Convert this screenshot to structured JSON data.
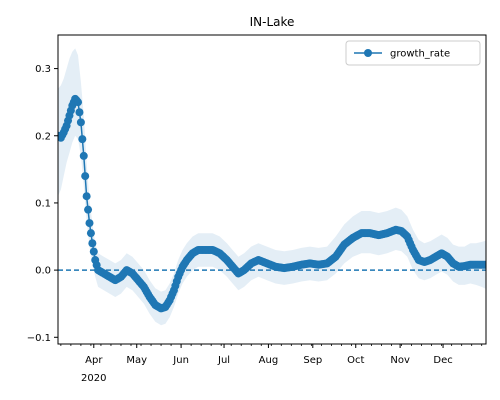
{
  "chart_data": {
    "type": "line",
    "title": "IN-Lake",
    "xlabel": "",
    "ylabel": "",
    "x_range": [
      "2020-03-07",
      "2020-12-31"
    ],
    "ylim": [
      -0.11,
      0.35
    ],
    "grid": false,
    "legend_position": "top-right",
    "x_tick_labels": [
      "Apr",
      "May",
      "Jun",
      "Jul",
      "Aug",
      "Sep",
      "Oct",
      "Nov",
      "Dec"
    ],
    "x_tick_dates": [
      "2020-04-01",
      "2020-05-01",
      "2020-06-01",
      "2020-07-01",
      "2020-08-01",
      "2020-09-01",
      "2020-10-01",
      "2020-11-01",
      "2020-12-01"
    ],
    "x_year_label": "2020",
    "y_ticks": [
      -0.1,
      0.0,
      0.1,
      0.2,
      0.3
    ],
    "y_tick_labels": [
      "−0.1",
      "0.0",
      "0.1",
      "0.2",
      "0.3"
    ],
    "reference_line": {
      "y": 0.0,
      "style": "dashed"
    },
    "series": [
      {
        "name": "growth_rate",
        "color": "#1f77b4",
        "band_color": "#1f77b4",
        "points": [
          {
            "x": "2020-03-07",
            "y": 0.2,
            "lo": 0.11,
            "hi": 0.27
          },
          {
            "x": "2020-03-09",
            "y": 0.197,
            "lo": 0.12,
            "hi": 0.275
          },
          {
            "x": "2020-03-11",
            "y": 0.205,
            "lo": 0.14,
            "hi": 0.285
          },
          {
            "x": "2020-03-13",
            "y": 0.215,
            "lo": 0.16,
            "hi": 0.3
          },
          {
            "x": "2020-03-15",
            "y": 0.23,
            "lo": 0.175,
            "hi": 0.315
          },
          {
            "x": "2020-03-17",
            "y": 0.245,
            "lo": 0.19,
            "hi": 0.325
          },
          {
            "x": "2020-03-19",
            "y": 0.255,
            "lo": 0.2,
            "hi": 0.33
          },
          {
            "x": "2020-03-21",
            "y": 0.25,
            "lo": 0.195,
            "hi": 0.32
          },
          {
            "x": "2020-03-23",
            "y": 0.22,
            "lo": 0.17,
            "hi": 0.28
          },
          {
            "x": "2020-03-25",
            "y": 0.17,
            "lo": 0.125,
            "hi": 0.23
          },
          {
            "x": "2020-03-27",
            "y": 0.11,
            "lo": 0.075,
            "hi": 0.16
          },
          {
            "x": "2020-03-29",
            "y": 0.07,
            "lo": 0.035,
            "hi": 0.105
          },
          {
            "x": "2020-03-31",
            "y": 0.04,
            "lo": 0.01,
            "hi": 0.07
          },
          {
            "x": "2020-04-02",
            "y": 0.015,
            "lo": -0.01,
            "hi": 0.04
          },
          {
            "x": "2020-04-04",
            "y": 0.0,
            "lo": -0.025,
            "hi": 0.025
          },
          {
            "x": "2020-04-08",
            "y": -0.005,
            "lo": -0.03,
            "hi": 0.02
          },
          {
            "x": "2020-04-12",
            "y": -0.01,
            "lo": -0.035,
            "hi": 0.015
          },
          {
            "x": "2020-04-16",
            "y": -0.015,
            "lo": -0.04,
            "hi": 0.01
          },
          {
            "x": "2020-04-20",
            "y": -0.01,
            "lo": -0.035,
            "hi": 0.015
          },
          {
            "x": "2020-04-24",
            "y": 0.0,
            "lo": -0.025,
            "hi": 0.025
          },
          {
            "x": "2020-04-28",
            "y": -0.005,
            "lo": -0.03,
            "hi": 0.02
          },
          {
            "x": "2020-05-02",
            "y": -0.015,
            "lo": -0.04,
            "hi": 0.01
          },
          {
            "x": "2020-05-06",
            "y": -0.025,
            "lo": -0.05,
            "hi": 0.0
          },
          {
            "x": "2020-05-10",
            "y": -0.04,
            "lo": -0.065,
            "hi": -0.015
          },
          {
            "x": "2020-05-14",
            "y": -0.052,
            "lo": -0.077,
            "hi": -0.027
          },
          {
            "x": "2020-05-18",
            "y": -0.057,
            "lo": -0.082,
            "hi": -0.032
          },
          {
            "x": "2020-05-21",
            "y": -0.055,
            "lo": -0.08,
            "hi": -0.03
          },
          {
            "x": "2020-05-24",
            "y": -0.045,
            "lo": -0.07,
            "hi": -0.02
          },
          {
            "x": "2020-05-27",
            "y": -0.03,
            "lo": -0.055,
            "hi": -0.005
          },
          {
            "x": "2020-05-30",
            "y": -0.01,
            "lo": -0.035,
            "hi": 0.015
          },
          {
            "x": "2020-06-02",
            "y": 0.005,
            "lo": -0.02,
            "hi": 0.03
          },
          {
            "x": "2020-06-05",
            "y": 0.015,
            "lo": -0.01,
            "hi": 0.04
          },
          {
            "x": "2020-06-09",
            "y": 0.025,
            "lo": 0.0,
            "hi": 0.05
          },
          {
            "x": "2020-06-13",
            "y": 0.03,
            "lo": 0.005,
            "hi": 0.055
          },
          {
            "x": "2020-06-18",
            "y": 0.03,
            "lo": 0.005,
            "hi": 0.055
          },
          {
            "x": "2020-06-23",
            "y": 0.03,
            "lo": 0.005,
            "hi": 0.055
          },
          {
            "x": "2020-06-28",
            "y": 0.025,
            "lo": 0.0,
            "hi": 0.05
          },
          {
            "x": "2020-07-03",
            "y": 0.015,
            "lo": -0.01,
            "hi": 0.04
          },
          {
            "x": "2020-07-07",
            "y": 0.005,
            "lo": -0.02,
            "hi": 0.03
          },
          {
            "x": "2020-07-11",
            "y": -0.005,
            "lo": -0.03,
            "hi": 0.02
          },
          {
            "x": "2020-07-15",
            "y": 0.0,
            "lo": -0.025,
            "hi": 0.025
          },
          {
            "x": "2020-07-20",
            "y": 0.01,
            "lo": -0.015,
            "hi": 0.035
          },
          {
            "x": "2020-07-25",
            "y": 0.015,
            "lo": -0.01,
            "hi": 0.04
          },
          {
            "x": "2020-07-31",
            "y": 0.01,
            "lo": -0.015,
            "hi": 0.035
          },
          {
            "x": "2020-08-06",
            "y": 0.005,
            "lo": -0.02,
            "hi": 0.03
          },
          {
            "x": "2020-08-12",
            "y": 0.003,
            "lo": -0.022,
            "hi": 0.028
          },
          {
            "x": "2020-08-18",
            "y": 0.005,
            "lo": -0.02,
            "hi": 0.03
          },
          {
            "x": "2020-08-24",
            "y": 0.008,
            "lo": -0.017,
            "hi": 0.033
          },
          {
            "x": "2020-08-30",
            "y": 0.01,
            "lo": -0.015,
            "hi": 0.035
          },
          {
            "x": "2020-09-05",
            "y": 0.008,
            "lo": -0.017,
            "hi": 0.033
          },
          {
            "x": "2020-09-11",
            "y": 0.01,
            "lo": -0.015,
            "hi": 0.035
          },
          {
            "x": "2020-09-17",
            "y": 0.02,
            "lo": -0.005,
            "hi": 0.05
          },
          {
            "x": "2020-09-23",
            "y": 0.038,
            "lo": 0.01,
            "hi": 0.068
          },
          {
            "x": "2020-09-29",
            "y": 0.048,
            "lo": 0.02,
            "hi": 0.08
          },
          {
            "x": "2020-10-05",
            "y": 0.055,
            "lo": 0.025,
            "hi": 0.088
          },
          {
            "x": "2020-10-11",
            "y": 0.055,
            "lo": 0.025,
            "hi": 0.088
          },
          {
            "x": "2020-10-17",
            "y": 0.052,
            "lo": 0.022,
            "hi": 0.085
          },
          {
            "x": "2020-10-23",
            "y": 0.055,
            "lo": 0.025,
            "hi": 0.088
          },
          {
            "x": "2020-10-29",
            "y": 0.06,
            "lo": 0.03,
            "hi": 0.093
          },
          {
            "x": "2020-11-02",
            "y": 0.058,
            "lo": 0.028,
            "hi": 0.09
          },
          {
            "x": "2020-11-06",
            "y": 0.05,
            "lo": 0.02,
            "hi": 0.08
          },
          {
            "x": "2020-11-10",
            "y": 0.03,
            "lo": 0.0,
            "hi": 0.06
          },
          {
            "x": "2020-11-14",
            "y": 0.015,
            "lo": -0.012,
            "hi": 0.045
          },
          {
            "x": "2020-11-18",
            "y": 0.012,
            "lo": -0.015,
            "hi": 0.04
          },
          {
            "x": "2020-11-22",
            "y": 0.015,
            "lo": -0.012,
            "hi": 0.043
          },
          {
            "x": "2020-11-26",
            "y": 0.02,
            "lo": -0.007,
            "hi": 0.048
          },
          {
            "x": "2020-11-30",
            "y": 0.025,
            "lo": -0.002,
            "hi": 0.053
          },
          {
            "x": "2020-12-04",
            "y": 0.02,
            "lo": -0.007,
            "hi": 0.048
          },
          {
            "x": "2020-12-08",
            "y": 0.01,
            "lo": -0.017,
            "hi": 0.038
          },
          {
            "x": "2020-12-12",
            "y": 0.005,
            "lo": -0.022,
            "hi": 0.035
          },
          {
            "x": "2020-12-16",
            "y": 0.006,
            "lo": -0.022,
            "hi": 0.035
          },
          {
            "x": "2020-12-20",
            "y": 0.008,
            "lo": -0.02,
            "hi": 0.04
          },
          {
            "x": "2020-12-24",
            "y": 0.008,
            "lo": -0.022,
            "hi": 0.04
          },
          {
            "x": "2020-12-28",
            "y": 0.008,
            "lo": -0.025,
            "hi": 0.042
          },
          {
            "x": "2020-12-31",
            "y": 0.008,
            "lo": -0.028,
            "hi": 0.044
          }
        ]
      }
    ]
  }
}
